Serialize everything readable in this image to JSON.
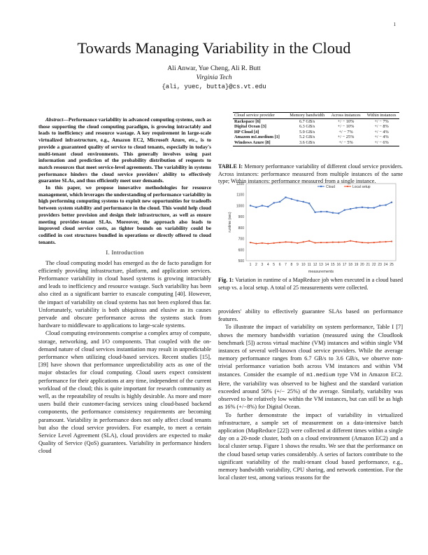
{
  "page_number": "1",
  "title": "Towards Managing Variability in the Cloud",
  "authors": "Ali Anwar, Yue Cheng, Ali R. Butt",
  "affiliation": "Virginia Tech",
  "email": "{ali, yuec, butta}@cs.vt.edu",
  "abstract": {
    "lead": "Abstract",
    "p1": "—Performance variability in advanced computing systems, such as those supporting the cloud computing paradigm, is growing intractably and leads to inefficiency and resource wastage. A key requirement in large-scale virtualized infrastructure, e.g., Amazon EC2, Microsoft Azure, etc., is to provide a guaranteed quality of service to cloud tenants, especially in today's multi-tenant cloud environments. This generally involves using past information and prediction of the probability distribution of requests to match resources that meet service-level agreements. The variability in systems performance hinders the cloud service providers' ability to effectively guarantee SLAs, and thus efficiently meet user demands.",
    "p2": "In this paper, we propose innovative methodologies for resource management, which leverages the understanding of performance variability in high performing computing systems to exploit new opportunities for tradeoffs between system stability and performance in the cloud. This would help cloud providers better provision and design their infrastructure, as well as ensure meeting provider-tenant SLAs. Moreover, the approach also leads to improved cloud service costs, as tighter bounds on variability could be codified in cost structures bundled in operations or directly offered to cloud tenants."
  },
  "section1": {
    "heading": "I. Introduction",
    "p1": "The cloud computing model has emerged as the de facto paradigm for efficiently providing infrastructure, platform, and application services. Performance variability in cloud based systems is growing intractably and leads to inefficiency and resource wastage. Such variability has been also cited as a significant barrier to exascale computing [40]. However, the impact of variability on cloud systems has not been explored thus far. Unfortunately, variability is both ubiquitous and elusive as its causes pervade and obscure performance across the systems stack from hardware to middleware to applications to large-scale systems.",
    "p2": "Cloud computing environments comprise a complex array of compute, storage, networking, and I/O components. That coupled with the on-demand nature of cloud services instantiation may result in unpredictable performance when utilizing cloud-based services. Recent studies [15], [39] have shown that performance unpredictability acts as one of the major obstacles for cloud computing. Cloud users expect consistent performance for their applications at any time, independent of the current workload of the cloud; this is quite important for research community as well, as the repeatability of results is highly desirable. As more and more users build their customer-facing services using cloud-based backend components, the performance consistency requirements are becoming paramount. Variability in performance does not only affect cloud tenants but also the cloud service providers. For example, to meet a certain Service Level Agreement (SLA), cloud providers are expected to make Quality of Service (QoS) guarantees. Variability in performance hinders cloud"
  },
  "right_col": {
    "p0": "providers' ability to effectively guarantee SLAs based on performance features.",
    "p1a": "To illustrate the impact of variability on system performance, Table I [7] shows the memory bandwidth variation (measured using the Cloudlook benchmark [5]) across virtual machine (VM) instances and within single VM instances of several well-known cloud service providers. While the average memory performance ranges from 6.7 GB/s to 3.6 GB/s, we observe non-trivial performance variation both across VM instances and within VM instances. Consider the example of ",
    "p1_code": "m1.medium",
    "p1b": " type VM in Amazon EC2. Here, the variability was observed to be highest and the standard variation exceeded around 50% (+/− 25%) of the average. Similarly, variability was observed to be relatively low within the VM instances, but can still be as high as 16% (+/−8%) for Digital Ocean.",
    "p2": "To further demonstrate the impact of variability in virtualized infrastructure, a sample set of measurement on a data-intensive batch application (MapReduce [22]) were collected at different times within a single day on a 20-node cluster, both on a cloud environment (Amazon EC2) and a local cluster setup. Figure 1 shows the results. We see that the performance on the cloud based setup varies considerably. A series of factors contribute to the significant variability of the multi-tenant cloud based performance, e.g., memory bandwidth variability, CPU sharing, and network contention. For the local cluster test, among various reasons for the"
  },
  "table1": {
    "headers": [
      "Cloud service provider",
      "Memory bandwidth",
      "Across instances",
      "Within instances"
    ],
    "rows": [
      [
        "Rackspace [6]",
        "6.7 GB/s",
        "+/ − 10%",
        "+/ − 7%"
      ],
      [
        "Digital Ocean [3]",
        "6.3 GB/s",
        "+/ − 10%",
        "+/ − 8%"
      ],
      [
        "HP Cloud [4]",
        "5.9 GB/s",
        "+/ − 7%",
        "+/ − 4%"
      ],
      [
        "Amazon m1.medium [1]",
        "5.2 GB/s",
        "+/ − 25%",
        "+/ − 4%"
      ],
      [
        "Windows Azure [8]",
        "3.6 GB/s",
        "+/ − 5%",
        "+/ − 6%"
      ]
    ],
    "caption_label": "TABLE I:",
    "caption_text": " Memory performance variability of different cloud service providers. Across instances: performance measured from multiple instances of the same type; Within instances: performance measured from a single instance."
  },
  "figure1": {
    "caption_label": "Fig. 1:",
    "caption_text": " Variation in runtime of a MapReduce job when executed in a cloud based setup vs. a local setup. A total of 25 measurements were collected."
  },
  "chart_data": {
    "type": "line",
    "title": "",
    "xlabel": "measurements",
    "ylabel": "runtime (sec)",
    "x": [
      1,
      2,
      3,
      4,
      5,
      6,
      7,
      8,
      9,
      10,
      11,
      12,
      13,
      14,
      15,
      16,
      17,
      18,
      19,
      20,
      21,
      22,
      23,
      24,
      25
    ],
    "ylim": [
      500,
      1200
    ],
    "yticks": [
      500,
      600,
      700,
      800,
      900,
      1000,
      1100,
      1200
    ],
    "grid": false,
    "legend_position": "top",
    "series": [
      {
        "name": "Cloud",
        "color": "#4472c4",
        "values": [
          1000,
          985,
          1000,
          990,
          1025,
          1035,
          1075,
          1060,
          1045,
          1035,
          1020,
          940,
          945,
          945,
          935,
          930,
          960,
          970,
          980,
          985,
          980,
          980,
          1000,
          1005,
          1030
        ]
      },
      {
        "name": "Local setup",
        "color": "#e8502a",
        "values": [
          665,
          655,
          660,
          655,
          660,
          665,
          670,
          668,
          660,
          670,
          680,
          662,
          665,
          665,
          668,
          668,
          670,
          680,
          672,
          665,
          662,
          665,
          670,
          672,
          675
        ]
      }
    ]
  }
}
